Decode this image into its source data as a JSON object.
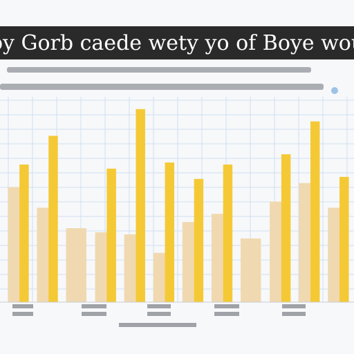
{
  "chart_data": {
    "type": "bar",
    "title": "py Gorb caede wety yo of Boye wou",
    "categories": [
      null,
      null,
      null,
      null,
      null,
      null,
      null,
      null,
      null,
      null,
      null,
      null
    ],
    "series": [
      {
        "color": "#f0d9b0",
        "values": [
          56,
          46,
          36,
          34,
          33,
          24,
          39,
          43,
          31,
          49,
          58,
          46
        ]
      },
      {
        "color": "#f4c935",
        "values": [
          67,
          81,
          null,
          65,
          94,
          68,
          60,
          67,
          null,
          72,
          88,
          61
        ]
      }
    ],
    "ylim": [
      0,
      100
    ],
    "grid": true
  }
}
